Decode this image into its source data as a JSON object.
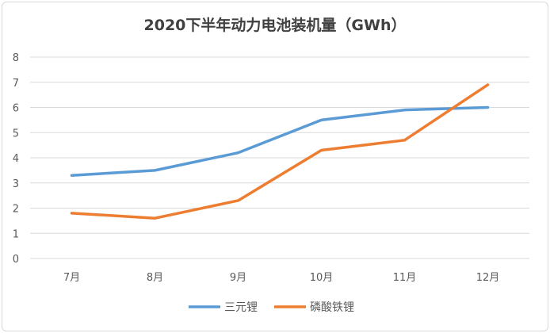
{
  "chart_data": {
    "type": "line",
    "title": "2020下半年动力电池装机量（GWh）",
    "categories": [
      "7月",
      "8月",
      "9月",
      "10月",
      "11月",
      "12月"
    ],
    "series": [
      {
        "name": "三元锂",
        "color": "#5b9bd5",
        "values": [
          3.3,
          3.5,
          4.2,
          5.5,
          5.9,
          6.0
        ]
      },
      {
        "name": "磷酸铁锂",
        "color": "#ed7d31",
        "values": [
          1.8,
          1.6,
          2.3,
          4.3,
          4.7,
          6.9
        ]
      }
    ],
    "ylim": [
      0,
      8
    ],
    "yticks": [
      0,
      1,
      2,
      3,
      4,
      5,
      6,
      7,
      8
    ],
    "grid": true,
    "legend": "bottom"
  }
}
